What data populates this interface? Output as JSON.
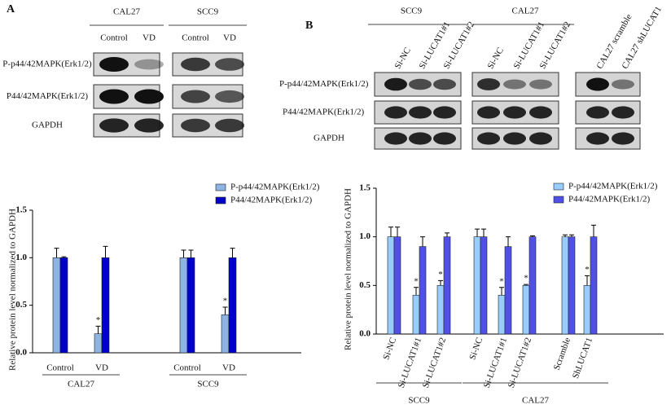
{
  "panel_labels": [
    "A",
    "B"
  ],
  "blot_a": {
    "groups": [
      "CAL27",
      "SCC9"
    ],
    "lanes": [
      "Control",
      "VD",
      "Control",
      "VD"
    ],
    "rows": [
      "P-p44/42MAPK(Erk1/2)",
      "P44/42MAPK(Erk1/2)",
      "GAPDH"
    ]
  },
  "blot_b": {
    "groups": [
      "SCC9",
      "CAL27"
    ],
    "lanes": [
      "Si-NC",
      "Si-LUCAT1#1",
      "Si-LUCAT1#2",
      "Si-NC",
      "Si-LUCAT1#1",
      "Si-LUCAT1#2",
      "CAL27 scramble",
      "CAL27 shLUCAT1"
    ],
    "rows": [
      "P-p44/42MAPK(Erk1/2)",
      "P44/42MAPK(Erk1/2)",
      "GAPDH"
    ]
  },
  "chart_data": [
    {
      "type": "bar",
      "y_label": "Relative protein level normalized to GAPDH",
      "categories": [
        "Control",
        "VD",
        "Control",
        "VD"
      ],
      "groups": [
        "CAL27",
        "SCC9"
      ],
      "ylim": [
        0,
        1.5
      ],
      "yticks": [
        {
          "value": 0,
          "label": "0.0"
        },
        0.5,
        {
          "value": 1,
          "label": "1.0"
        },
        1.5
      ],
      "series": [
        {
          "name": "P-p44/42MAPK(Erk1/2)",
          "color": "#8db4e2",
          "values": [
            1.0,
            0.2,
            1.0,
            0.4
          ],
          "errors": [
            0.1,
            0.08,
            0.08,
            0.08
          ],
          "significance": [
            null,
            "*",
            null,
            "*"
          ]
        },
        {
          "name": "P44/42MAPK(Erk1/2)",
          "color": "#0000cc",
          "values": [
            1.0,
            1.0,
            1.0,
            1.0
          ],
          "errors": [
            0.01,
            0.12,
            0.08,
            0.1
          ]
        }
      ]
    },
    {
      "type": "bar",
      "y_label": "Relative protein level normalized to GAPDH",
      "categories": [
        "Si-NC",
        "Si-LUCAT1#1",
        "Si-LUCAT1#2",
        "Si-NC",
        "Si-LUCAT1#1",
        "Si-LUCAT1#2",
        "Scramble",
        "ShLUCAT1"
      ],
      "groups": [
        "SCC9",
        "CAL27"
      ],
      "ylim": [
        0,
        1.5
      ],
      "yticks": [
        {
          "value": 0,
          "label": "0.0"
        },
        0.5,
        {
          "value": 1,
          "label": "1.0"
        },
        1.5
      ],
      "series": [
        {
          "name": "P-p44/42MAPK(Erk1/2)",
          "color": "#99ccff",
          "values": [
            1.0,
            0.4,
            0.5,
            1.0,
            0.4,
            0.5,
            1.0,
            0.5
          ],
          "errors": [
            0.1,
            0.08,
            0.05,
            0.08,
            0.08,
            0.01,
            0.02,
            0.1
          ],
          "significance": [
            null,
            "*",
            "*",
            null,
            "*",
            "*",
            null,
            "*"
          ]
        },
        {
          "name": "P44/42MAPK(Erk1/2)",
          "color": "#5050e6",
          "values": [
            1.0,
            0.9,
            1.0,
            1.0,
            0.9,
            1.0,
            1.0,
            1.0
          ],
          "errors": [
            0.1,
            0.1,
            0.04,
            0.08,
            0.1,
            0.01,
            0.02,
            0.12
          ]
        }
      ]
    }
  ]
}
